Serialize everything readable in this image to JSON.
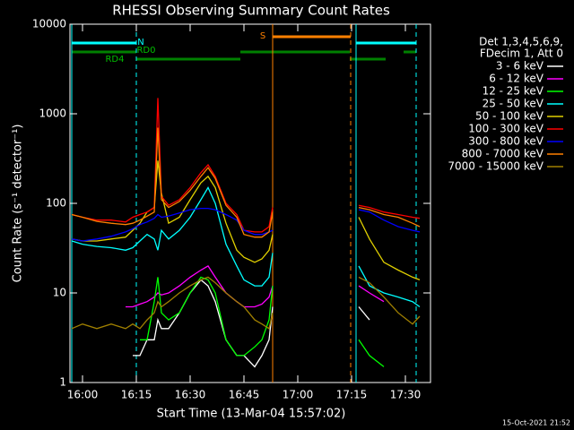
{
  "chart_data": {
    "type": "line",
    "title": "RHESSI Observing Summary Count Rates",
    "x_label": "Start Time (13-Mar-04 15:57:02)",
    "y_label": "Count Rate (s⁻¹ detector⁻¹)",
    "footer": "15-Oct-2021 21:52",
    "legend_header": [
      "Det 1,3,4,5,6,9,",
      "FDecim 1, Att 0"
    ],
    "legend_position": "right",
    "ylog": true,
    "ylim": [
      1,
      10000
    ],
    "yticks": [
      1,
      10,
      100,
      1000,
      10000
    ],
    "xlim": [
      -3.5,
      97
    ],
    "xticks": [
      {
        "value": 0,
        "label": "16:00"
      },
      {
        "value": 15,
        "label": "16:15"
      },
      {
        "value": 30,
        "label": "16:30"
      },
      {
        "value": 45,
        "label": "16:45"
      },
      {
        "value": 60,
        "label": "17:00"
      },
      {
        "value": 75,
        "label": "17:15"
      },
      {
        "value": 90,
        "label": "17:30"
      }
    ],
    "annotations": [
      "N",
      "RD0",
      "RD4",
      "S"
    ],
    "x": [
      -3,
      0,
      4,
      8,
      12,
      14,
      16,
      18,
      20,
      21,
      22,
      24,
      27,
      30,
      33,
      35,
      37,
      40,
      43,
      45,
      48,
      50,
      52,
      53,
      60,
      77,
      80,
      84,
      88,
      92,
      94
    ],
    "series": [
      {
        "name": "3 - 6 keV",
        "color": "#ffffff",
        "values": [
          null,
          null,
          null,
          null,
          null,
          2,
          2,
          3,
          3,
          5,
          4,
          4,
          6,
          10,
          14,
          12,
          8,
          3,
          2,
          2,
          1.5,
          2,
          3,
          7,
          null,
          7,
          5,
          null,
          null,
          null,
          null
        ]
      },
      {
        "name": "6 - 12 keV",
        "color": "#ff00ff",
        "values": [
          null,
          null,
          null,
          null,
          7,
          7,
          7.5,
          8,
          9,
          10,
          9.5,
          10,
          12,
          15,
          18,
          20,
          15,
          10,
          8,
          7,
          7,
          7.5,
          9,
          12,
          null,
          12,
          10,
          8,
          null,
          null,
          null
        ]
      },
      {
        "name": "12 - 25 keV",
        "color": "#00ff00",
        "values": [
          null,
          null,
          null,
          null,
          null,
          null,
          3,
          3,
          8,
          15,
          6,
          5,
          6,
          10,
          15,
          14,
          10,
          3,
          2,
          2,
          2.5,
          3,
          5,
          12,
          null,
          3,
          2,
          1.5,
          null,
          null,
          null
        ]
      },
      {
        "name": "25 - 50 keV",
        "color": "#00ffff",
        "values": [
          38,
          35,
          33,
          32,
          30,
          32,
          38,
          45,
          40,
          30,
          50,
          40,
          50,
          70,
          110,
          150,
          100,
          35,
          20,
          14,
          12,
          12,
          15,
          28,
          null,
          20,
          12,
          10,
          9,
          8,
          7
        ]
      },
      {
        "name": "50 - 100 keV",
        "color": "#e0d000",
        "values": [
          40,
          38,
          38,
          40,
          42,
          50,
          60,
          80,
          90,
          300,
          130,
          60,
          70,
          110,
          170,
          200,
          150,
          60,
          30,
          25,
          22,
          24,
          30,
          45,
          null,
          70,
          40,
          22,
          18,
          15,
          14
        ]
      },
      {
        "name": "100 - 300 keV",
        "color": "#ff0000",
        "values": [
          75,
          70,
          65,
          65,
          62,
          70,
          75,
          80,
          90,
          1500,
          120,
          95,
          110,
          150,
          220,
          270,
          200,
          100,
          75,
          50,
          48,
          48,
          55,
          90,
          null,
          95,
          90,
          80,
          75,
          70,
          68
        ]
      },
      {
        "name": "300 - 800 keV",
        "color": "#0000ff",
        "values": [
          40,
          38,
          40,
          43,
          48,
          52,
          58,
          62,
          68,
          75,
          70,
          72,
          78,
          85,
          88,
          88,
          85,
          75,
          65,
          50,
          45,
          45,
          48,
          50,
          null,
          85,
          80,
          65,
          55,
          50,
          48
        ]
      },
      {
        "name": "800 - 7000 keV",
        "color": "#ff8000",
        "values": [
          75,
          70,
          63,
          60,
          58,
          60,
          65,
          72,
          80,
          700,
          110,
          90,
          105,
          140,
          200,
          250,
          190,
          95,
          70,
          45,
          42,
          42,
          48,
          80,
          null,
          90,
          85,
          75,
          70,
          60,
          55
        ]
      },
      {
        "name": "7000 - 15000 keV",
        "color": "#a08000",
        "values": [
          4,
          4.5,
          4,
          4.5,
          4,
          4.5,
          4,
          5,
          6,
          8,
          7,
          8,
          10,
          12,
          14,
          15,
          13,
          10,
          8,
          7,
          5,
          4.5,
          4,
          6,
          null,
          15,
          13,
          9,
          6,
          4.5,
          5.5
        ]
      }
    ]
  }
}
